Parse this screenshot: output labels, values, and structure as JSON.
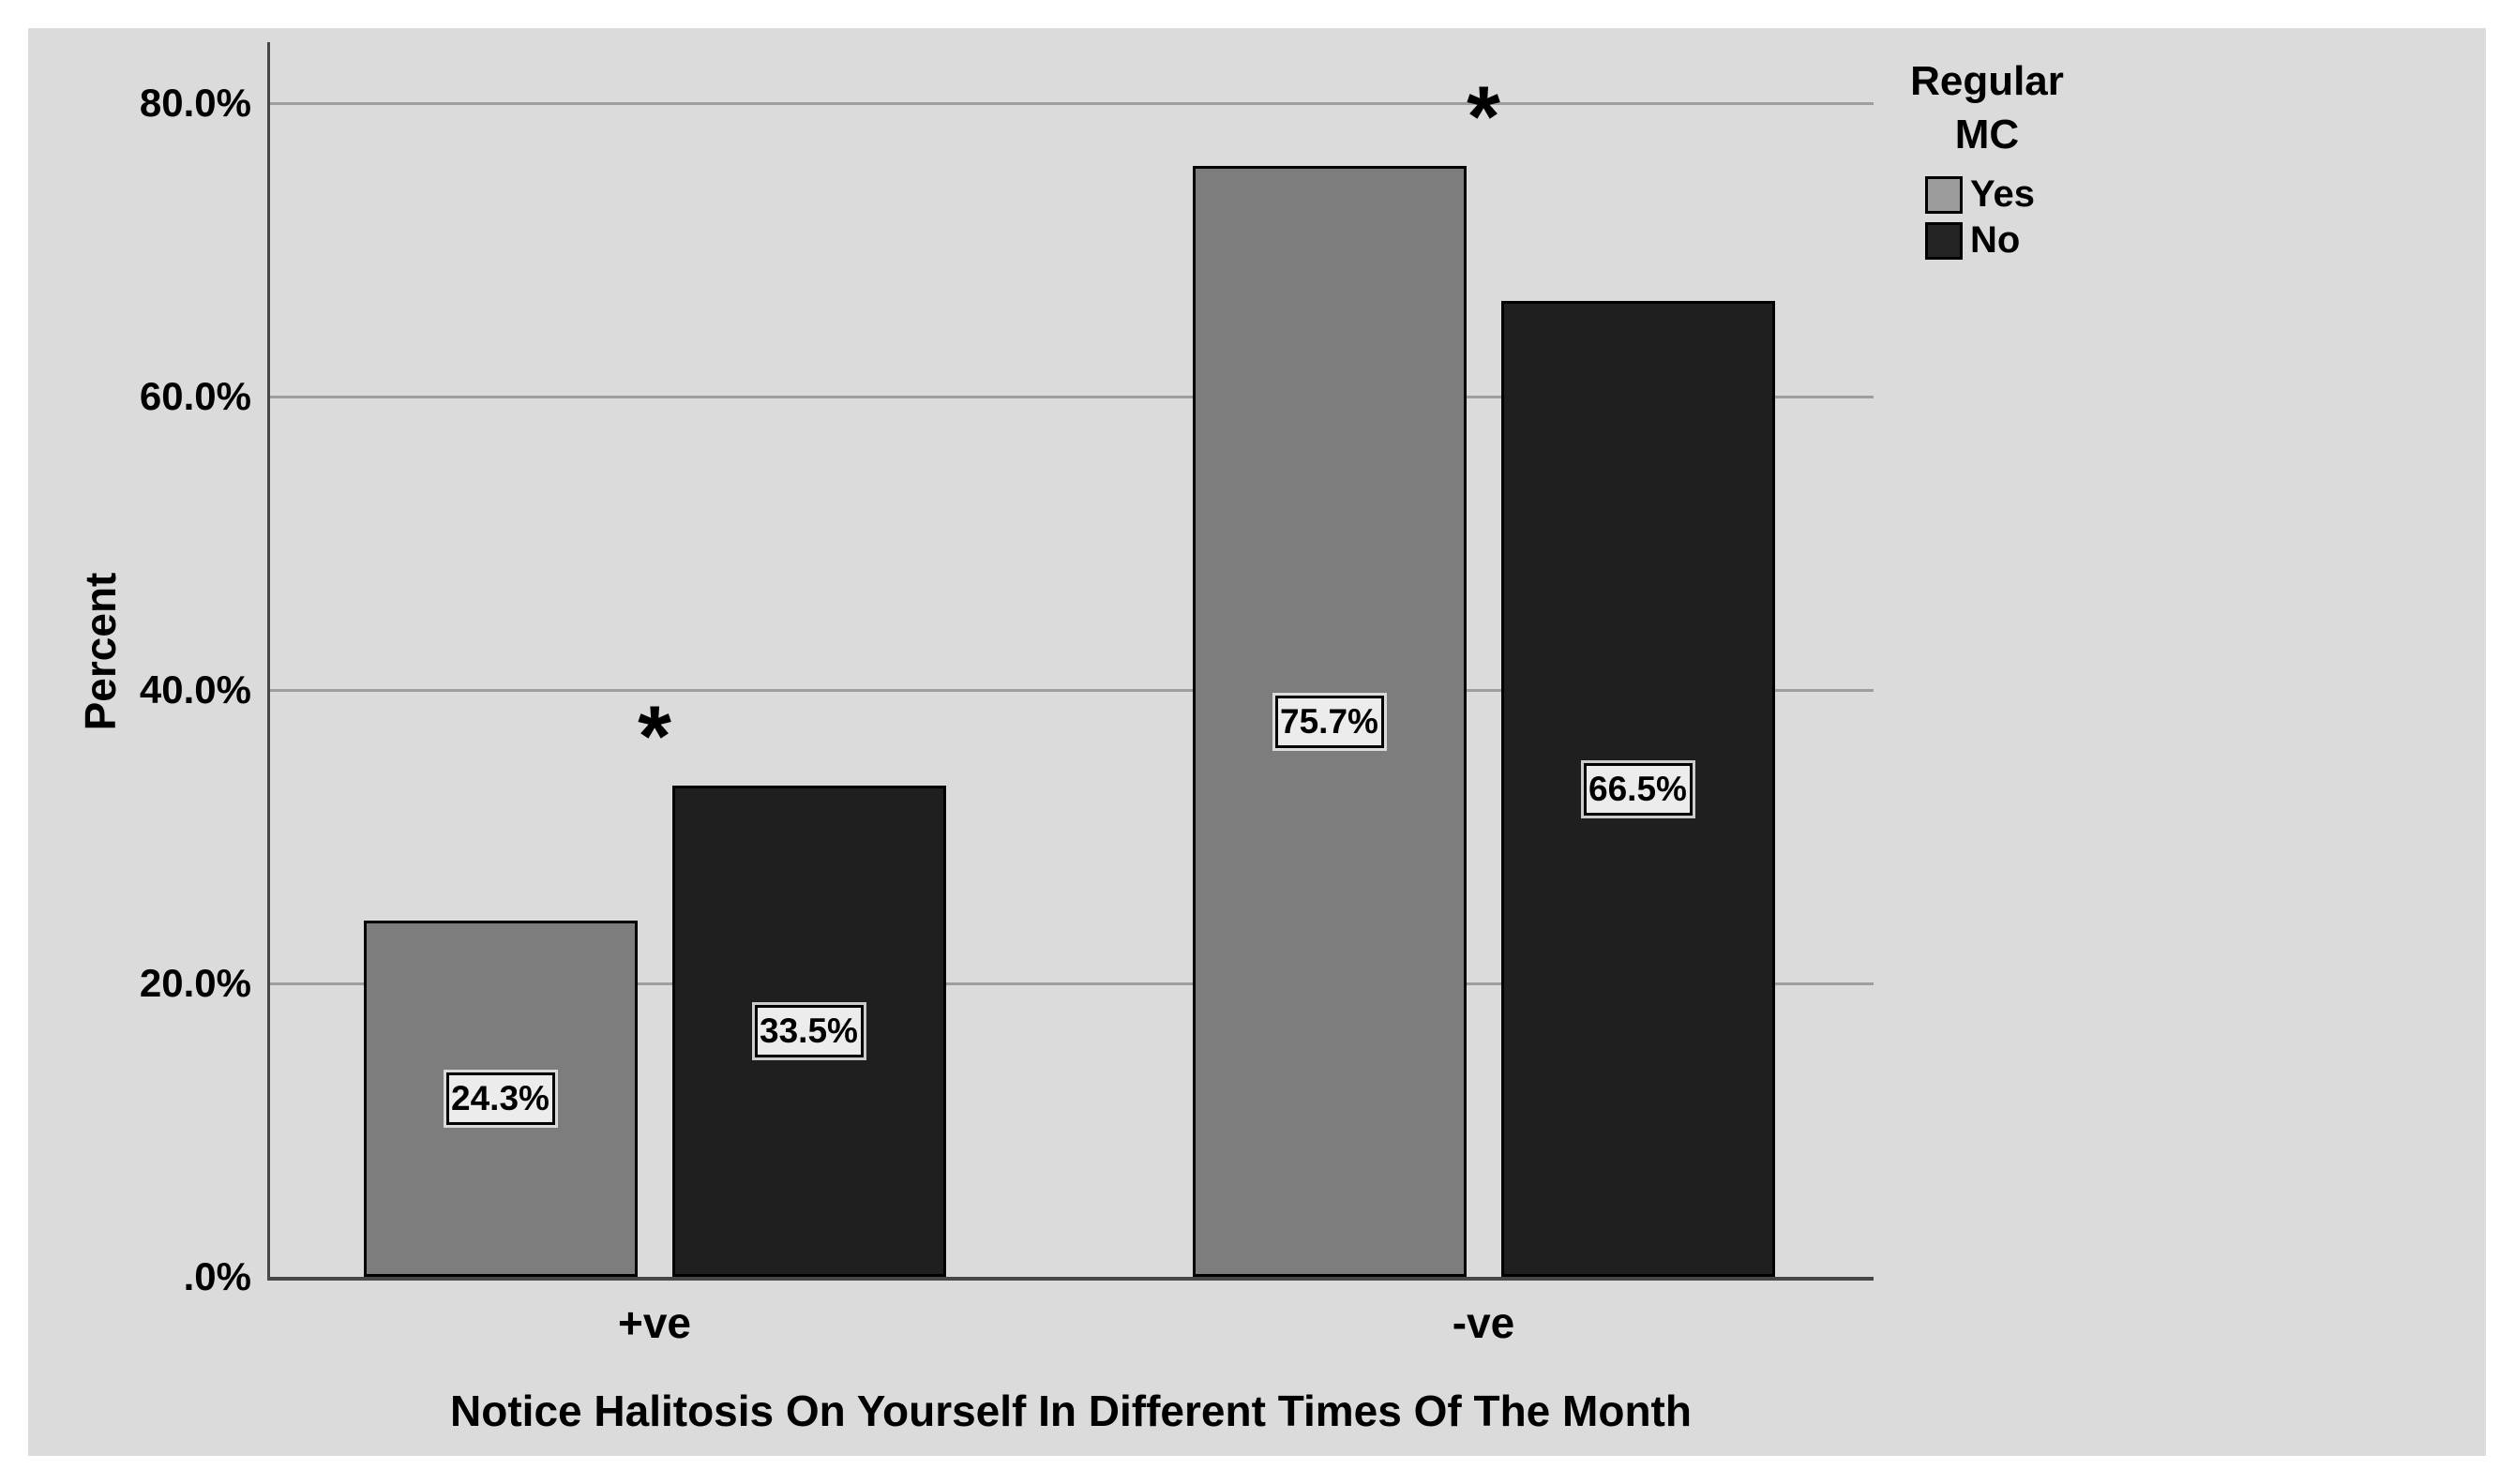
{
  "chart_data": {
    "type": "bar",
    "title": "",
    "xlabel": "Notice Halitosis On Yourself In Different Times Of The Month",
    "ylabel": "Percent",
    "categories": [
      "+ve",
      "-ve"
    ],
    "series": [
      {
        "name": "Yes",
        "values": [
          24.3,
          75.7
        ],
        "data_labels": [
          "24.3%",
          "75.7%"
        ],
        "color": "#7d7d7d"
      },
      {
        "name": "No",
        "values": [
          33.5,
          66.5
        ],
        "data_labels": [
          "33.5%",
          "66.5%"
        ],
        "color": "#1f1f1f"
      }
    ],
    "y_axis": {
      "ticks": [
        {
          "value": 80,
          "label": "80.0%"
        },
        {
          "value": 60,
          "label": "60.0%"
        },
        {
          "value": 40,
          "label": "40.0%"
        },
        {
          "value": 20,
          "label": "20.0%"
        },
        {
          "value": 0,
          "label": ".0%"
        }
      ],
      "range": [
        0,
        84
      ]
    },
    "grid": "horizontal",
    "legend": {
      "title": "Regular MC",
      "title_lines": [
        "Regular",
        "MC"
      ],
      "position": "top-right",
      "entries": [
        {
          "label": "Yes",
          "color": "#9b9b9b"
        },
        {
          "label": "No",
          "color": "#242424"
        }
      ]
    },
    "annotations": [
      {
        "symbol": "*",
        "category": "+ve"
      },
      {
        "symbol": "*",
        "category": "-ve"
      }
    ]
  },
  "colors": {
    "page_background": "#ffffff",
    "panel_background": "#dbdbdb",
    "gridline": "#9e9e9e",
    "axis_line": "#474747",
    "text": "#000000",
    "value_label_background": "#ececec",
    "value_label_border": "#000000"
  }
}
